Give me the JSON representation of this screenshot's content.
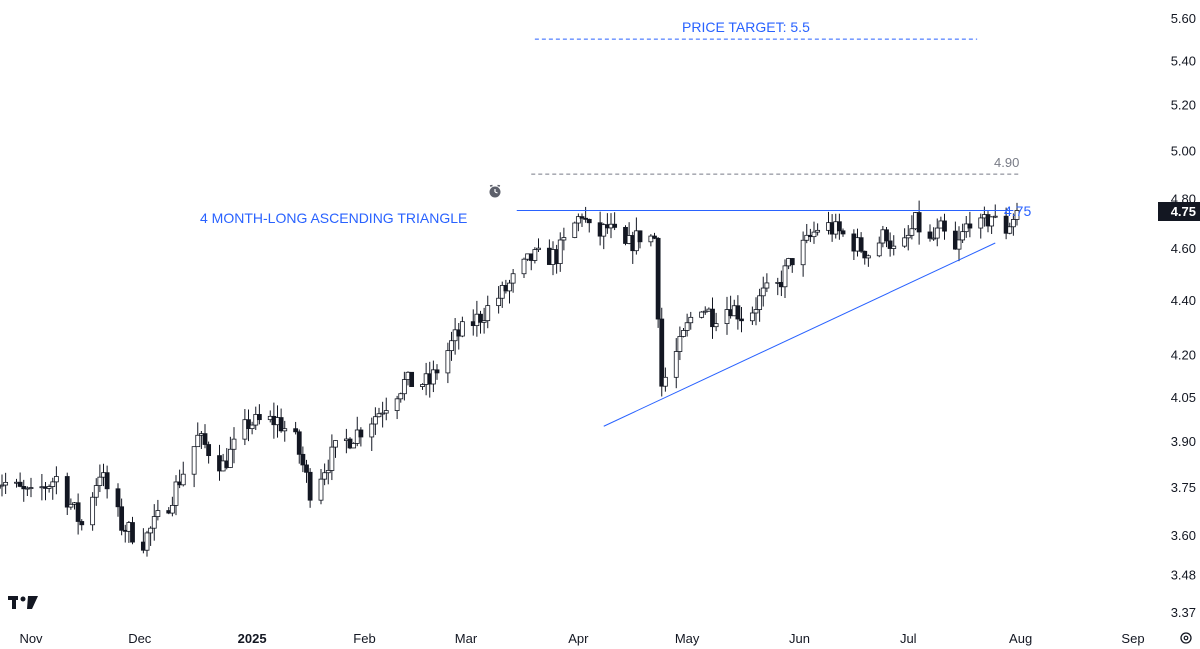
{
  "chart_data": {
    "type": "candlestick",
    "title": "",
    "xlabel": "",
    "ylabel": "",
    "ylim": [
      3.37,
      5.6
    ],
    "y_scale": "log",
    "y_ticks": [
      "5.60",
      "5.40",
      "5.20",
      "5.00",
      "4.80",
      "4.60",
      "4.40",
      "4.20",
      "4.05",
      "3.90",
      "3.75",
      "3.60",
      "3.48",
      "3.37"
    ],
    "x_ticks": [
      {
        "label": "Nov",
        "date": "2024-11-01"
      },
      {
        "label": "Dec",
        "date": "2024-12-01"
      },
      {
        "label": "2025",
        "date": "2025-01-01"
      },
      {
        "label": "Feb",
        "date": "2025-02-01"
      },
      {
        "label": "Mar",
        "date": "2025-03-01"
      },
      {
        "label": "Apr",
        "date": "2025-04-01"
      },
      {
        "label": "May",
        "date": "2025-05-01"
      },
      {
        "label": "Jun",
        "date": "2025-06-01"
      },
      {
        "label": "Jul",
        "date": "2025-07-01"
      },
      {
        "label": "Aug",
        "date": "2025-08-01"
      },
      {
        "label": "Sep",
        "date": "2025-09-01"
      }
    ],
    "last_price": "4.75",
    "annotations": {
      "pattern_label": "4 MONTH-LONG ASCENDING TRIANGLE",
      "price_target_label": "PRICE TARGET: 5.5",
      "price_target": 5.5,
      "level_490_label": "4.90",
      "level_490": 4.9,
      "resistance_label": "4.75",
      "resistance": 4.75,
      "support_line": {
        "start": {
          "date": "2025-04-08",
          "price": 3.95
        },
        "end": {
          "date": "2025-07-25",
          "price": 4.62
        }
      }
    },
    "series_path": [
      [
        "2024-10-22",
        3.78
      ],
      [
        "2024-11-01",
        3.72
      ],
      [
        "2024-11-08",
        3.78
      ],
      [
        "2024-11-15",
        3.63
      ],
      [
        "2024-11-20",
        3.8
      ],
      [
        "2024-11-26",
        3.63
      ],
      [
        "2024-12-02",
        3.58
      ],
      [
        "2024-12-09",
        3.7
      ],
      [
        "2024-12-13",
        3.8
      ],
      [
        "2024-12-17",
        3.91
      ],
      [
        "2024-12-24",
        3.82
      ],
      [
        "2024-12-31",
        3.96
      ],
      [
        "2025-01-08",
        3.97
      ],
      [
        "2025-01-13",
        3.9
      ],
      [
        "2025-01-17",
        3.74
      ],
      [
        "2025-01-24",
        3.87
      ],
      [
        "2025-01-31",
        3.94
      ],
      [
        "2025-02-05",
        4.0
      ],
      [
        "2025-02-12",
        4.1
      ],
      [
        "2025-02-19",
        4.1
      ],
      [
        "2025-02-26",
        4.26
      ],
      [
        "2025-03-05",
        4.34
      ],
      [
        "2025-03-12",
        4.44
      ],
      [
        "2025-03-19",
        4.56
      ],
      [
        "2025-03-26",
        4.57
      ],
      [
        "2025-04-02",
        4.74
      ],
      [
        "2025-04-05",
        4.63
      ],
      [
        "2025-04-09",
        4.68
      ],
      [
        "2025-04-14",
        4.6
      ],
      [
        "2025-04-18",
        4.65
      ],
      [
        "2025-04-22",
        4.64
      ],
      [
        "2025-04-24",
        4.09
      ],
      [
        "2025-04-29",
        4.23
      ],
      [
        "2025-05-04",
        4.4
      ],
      [
        "2025-05-08",
        4.34
      ],
      [
        "2025-05-13",
        4.38
      ],
      [
        "2025-05-17",
        4.33
      ],
      [
        "2025-05-22",
        4.42
      ],
      [
        "2025-05-26",
        4.45
      ],
      [
        "2025-05-30",
        4.56
      ],
      [
        "2025-06-03",
        4.62
      ],
      [
        "2025-06-07",
        4.7
      ],
      [
        "2025-06-12",
        4.66
      ],
      [
        "2025-06-16",
        4.62
      ],
      [
        "2025-06-20",
        4.58
      ],
      [
        "2025-06-25",
        4.66
      ],
      [
        "2025-06-28",
        4.55
      ],
      [
        "2025-07-03",
        4.7
      ],
      [
        "2025-07-07",
        4.62
      ],
      [
        "2025-07-10",
        4.67
      ],
      [
        "2025-07-14",
        4.58
      ],
      [
        "2025-07-18",
        4.72
      ],
      [
        "2025-07-21",
        4.68
      ],
      [
        "2025-07-24",
        4.73
      ],
      [
        "2025-07-27",
        4.65
      ],
      [
        "2025-07-31",
        4.75
      ]
    ]
  },
  "logo": {
    "text": "TV"
  },
  "icons": {
    "alarm": "alarm-clock-icon",
    "settings": "gear-icon"
  },
  "colors": {
    "accent": "#2962ff",
    "candle": "#131722",
    "text": "#131722",
    "gray": "#787b86"
  }
}
